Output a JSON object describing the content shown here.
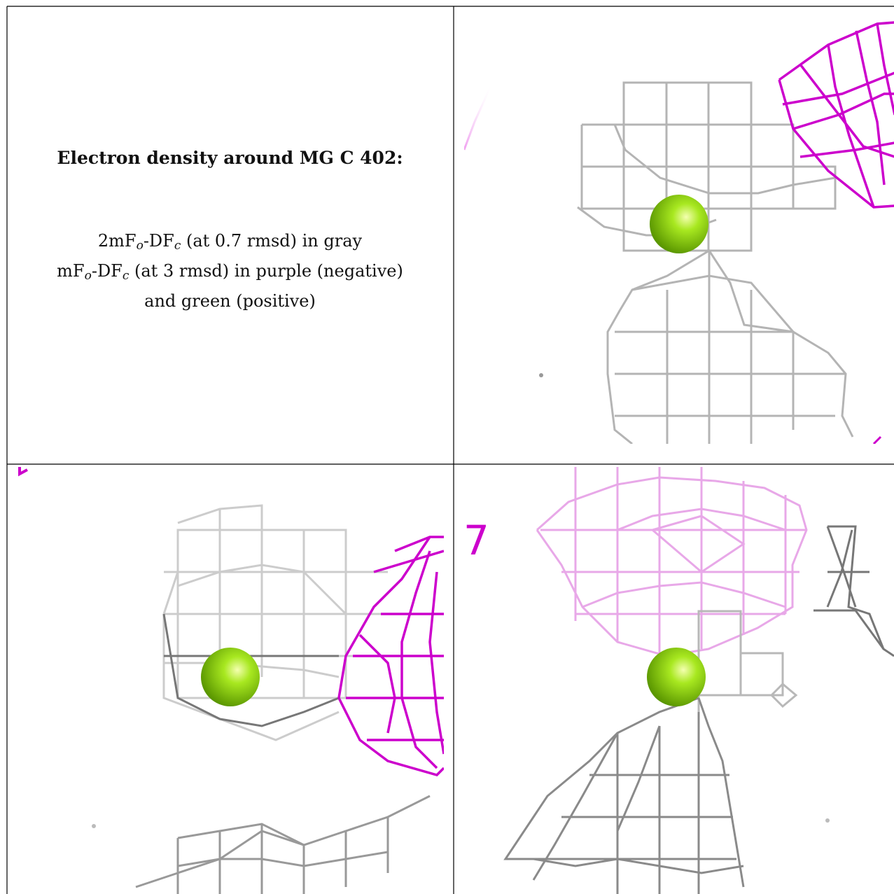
{
  "caption": {
    "title": "Electron density around MG C 402:",
    "line1_prefix": "2mF",
    "line1_sub1": "o",
    "line1_mid": "-DF",
    "line1_sub2": "c",
    "line1_suffix": " (at 0.7 rmsd) in gray",
    "line2_prefix": "mF",
    "line2_sub1": "o",
    "line2_mid": "-DF",
    "line2_sub2": "c",
    "line2_suffix": " (at 3 rmsd) in purple (negative)",
    "line3": "and green (positive)"
  },
  "panels": [
    {
      "id": "view-top-right",
      "atom": "MG C 402"
    },
    {
      "id": "view-bottom-left",
      "atom": "MG C 402"
    },
    {
      "id": "view-bottom-right",
      "atom": "MG C 402"
    }
  ],
  "colors": {
    "gray_mesh": "#9a9a9a",
    "dark_mesh": "#555555",
    "negative_mesh": "#cc00cc",
    "magnesium": "#8fd400",
    "border": "#000000"
  },
  "stray_label": "7"
}
